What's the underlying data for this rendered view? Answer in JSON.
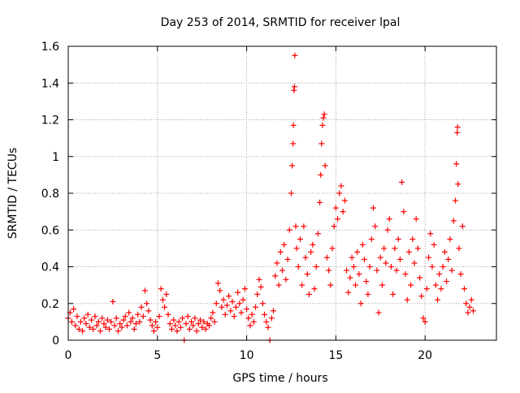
{
  "chart_data": {
    "type": "scatter",
    "title": "Day 253 of 2014, SRMTID for receiver lpal",
    "xlabel": "GPS time / hours",
    "ylabel": "SRMTID / TECUs",
    "xlim": [
      0,
      24
    ],
    "ylim": [
      0,
      1.6
    ],
    "x_ticks": [
      "0",
      "5",
      "10",
      "15",
      "20"
    ],
    "x_tick_values": [
      0,
      5,
      10,
      15,
      20
    ],
    "y_ticks": [
      "0",
      "0.2",
      "0.4",
      "0.6",
      "0.8",
      "1",
      "1.2",
      "1.4",
      "1.6"
    ],
    "y_tick_values": [
      0,
      0.2,
      0.4,
      0.6,
      0.8,
      1.0,
      1.2,
      1.4,
      1.6
    ],
    "grid": true,
    "marker": "plus",
    "color": "#ff0000",
    "series": [
      {
        "name": "SRMTID",
        "points": [
          [
            0.0,
            0.12
          ],
          [
            0.1,
            0.15
          ],
          [
            0.2,
            0.1
          ],
          [
            0.3,
            0.17
          ],
          [
            0.4,
            0.08
          ],
          [
            0.5,
            0.13
          ],
          [
            0.6,
            0.06
          ],
          [
            0.7,
            0.1
          ],
          [
            0.8,
            0.05
          ],
          [
            0.9,
            0.12
          ],
          [
            1.0,
            0.09
          ],
          [
            1.1,
            0.14
          ],
          [
            1.2,
            0.07
          ],
          [
            1.3,
            0.11
          ],
          [
            1.4,
            0.06
          ],
          [
            1.5,
            0.13
          ],
          [
            1.6,
            0.08
          ],
          [
            1.7,
            0.1
          ],
          [
            1.8,
            0.05
          ],
          [
            1.9,
            0.12
          ],
          [
            2.0,
            0.09
          ],
          [
            2.1,
            0.07
          ],
          [
            2.2,
            0.11
          ],
          [
            2.3,
            0.06
          ],
          [
            2.4,
            0.1
          ],
          [
            2.5,
            0.21
          ],
          [
            2.6,
            0.08
          ],
          [
            2.7,
            0.12
          ],
          [
            2.8,
            0.05
          ],
          [
            2.9,
            0.09
          ],
          [
            3.0,
            0.07
          ],
          [
            3.1,
            0.11
          ],
          [
            3.2,
            0.13
          ],
          [
            3.3,
            0.08
          ],
          [
            3.4,
            0.15
          ],
          [
            3.5,
            0.1
          ],
          [
            3.6,
            0.12
          ],
          [
            3.7,
            0.06
          ],
          [
            3.8,
            0.09
          ],
          [
            3.9,
            0.14
          ],
          [
            4.0,
            0.1
          ],
          [
            4.1,
            0.18
          ],
          [
            4.2,
            0.13
          ],
          [
            4.3,
            0.27
          ],
          [
            4.4,
            0.2
          ],
          [
            4.5,
            0.16
          ],
          [
            4.6,
            0.11
          ],
          [
            4.7,
            0.08
          ],
          [
            4.8,
            0.05
          ],
          [
            4.9,
            0.1
          ],
          [
            5.0,
            0.07
          ],
          [
            5.1,
            0.13
          ],
          [
            5.2,
            0.28
          ],
          [
            5.3,
            0.22
          ],
          [
            5.4,
            0.18
          ],
          [
            5.5,
            0.25
          ],
          [
            5.6,
            0.14
          ],
          [
            5.7,
            0.09
          ],
          [
            5.8,
            0.06
          ],
          [
            5.9,
            0.11
          ],
          [
            6.0,
            0.08
          ],
          [
            6.1,
            0.05
          ],
          [
            6.2,
            0.1
          ],
          [
            6.3,
            0.07
          ],
          [
            6.4,
            0.12
          ],
          [
            6.5,
            0.0
          ],
          [
            6.6,
            0.09
          ],
          [
            6.7,
            0.13
          ],
          [
            6.8,
            0.06
          ],
          [
            6.9,
            0.1
          ],
          [
            7.0,
            0.08
          ],
          [
            7.1,
            0.12
          ],
          [
            7.2,
            0.05
          ],
          [
            7.3,
            0.09
          ],
          [
            7.4,
            0.11
          ],
          [
            7.5,
            0.07
          ],
          [
            7.6,
            0.1
          ],
          [
            7.7,
            0.06
          ],
          [
            7.8,
            0.09
          ],
          [
            7.9,
            0.08
          ],
          [
            8.0,
            0.12
          ],
          [
            8.1,
            0.15
          ],
          [
            8.2,
            0.1
          ],
          [
            8.3,
            0.2
          ],
          [
            8.4,
            0.31
          ],
          [
            8.5,
            0.27
          ],
          [
            8.6,
            0.18
          ],
          [
            8.7,
            0.22
          ],
          [
            8.8,
            0.14
          ],
          [
            8.9,
            0.19
          ],
          [
            9.0,
            0.24
          ],
          [
            9.1,
            0.16
          ],
          [
            9.2,
            0.21
          ],
          [
            9.3,
            0.13
          ],
          [
            9.4,
            0.18
          ],
          [
            9.5,
            0.26
          ],
          [
            9.6,
            0.2
          ],
          [
            9.7,
            0.15
          ],
          [
            9.8,
            0.22
          ],
          [
            9.9,
            0.28
          ],
          [
            10.0,
            0.17
          ],
          [
            10.1,
            0.12
          ],
          [
            10.2,
            0.08
          ],
          [
            10.3,
            0.14
          ],
          [
            10.4,
            0.1
          ],
          [
            10.5,
            0.18
          ],
          [
            10.6,
            0.25
          ],
          [
            10.7,
            0.33
          ],
          [
            10.8,
            0.29
          ],
          [
            10.9,
            0.2
          ],
          [
            11.0,
            0.14
          ],
          [
            11.1,
            0.1
          ],
          [
            11.2,
            0.07
          ],
          [
            11.3,
            0.0
          ],
          [
            11.4,
            0.12
          ],
          [
            11.5,
            0.16
          ],
          [
            11.6,
            0.35
          ],
          [
            11.7,
            0.42
          ],
          [
            11.8,
            0.3
          ],
          [
            11.9,
            0.48
          ],
          [
            12.0,
            0.38
          ],
          [
            12.1,
            0.52
          ],
          [
            12.2,
            0.33
          ],
          [
            12.3,
            0.44
          ],
          [
            12.4,
            0.6
          ],
          [
            12.5,
            0.8
          ],
          [
            12.55,
            0.95
          ],
          [
            12.6,
            1.07
          ],
          [
            12.62,
            1.17
          ],
          [
            12.65,
            1.36
          ],
          [
            12.68,
            1.38
          ],
          [
            12.7,
            1.55
          ],
          [
            12.75,
            0.62
          ],
          [
            12.8,
            0.5
          ],
          [
            12.9,
            0.4
          ],
          [
            13.0,
            0.55
          ],
          [
            13.1,
            0.3
          ],
          [
            13.2,
            0.62
          ],
          [
            13.3,
            0.45
          ],
          [
            13.4,
            0.36
          ],
          [
            13.5,
            0.25
          ],
          [
            13.6,
            0.48
          ],
          [
            13.7,
            0.52
          ],
          [
            13.8,
            0.28
          ],
          [
            13.9,
            0.4
          ],
          [
            14.0,
            0.58
          ],
          [
            14.1,
            0.75
          ],
          [
            14.15,
            0.9
          ],
          [
            14.2,
            1.07
          ],
          [
            14.25,
            1.17
          ],
          [
            14.3,
            1.21
          ],
          [
            14.35,
            1.23
          ],
          [
            14.4,
            0.95
          ],
          [
            14.5,
            0.45
          ],
          [
            14.6,
            0.38
          ],
          [
            14.7,
            0.3
          ],
          [
            14.8,
            0.5
          ],
          [
            14.9,
            0.62
          ],
          [
            15.0,
            0.72
          ],
          [
            15.1,
            0.66
          ],
          [
            15.2,
            0.8
          ],
          [
            15.3,
            0.84
          ],
          [
            15.4,
            0.7
          ],
          [
            15.5,
            0.76
          ],
          [
            15.6,
            0.38
          ],
          [
            15.7,
            0.26
          ],
          [
            15.8,
            0.34
          ],
          [
            15.9,
            0.45
          ],
          [
            16.0,
            0.4
          ],
          [
            16.1,
            0.3
          ],
          [
            16.2,
            0.48
          ],
          [
            16.3,
            0.36
          ],
          [
            16.4,
            0.2
          ],
          [
            16.5,
            0.52
          ],
          [
            16.6,
            0.44
          ],
          [
            16.7,
            0.32
          ],
          [
            16.8,
            0.25
          ],
          [
            16.9,
            0.4
          ],
          [
            17.0,
            0.55
          ],
          [
            17.1,
            0.72
          ],
          [
            17.2,
            0.62
          ],
          [
            17.3,
            0.38
          ],
          [
            17.4,
            0.15
          ],
          [
            17.5,
            0.45
          ],
          [
            17.6,
            0.3
          ],
          [
            17.7,
            0.5
          ],
          [
            17.8,
            0.42
          ],
          [
            17.9,
            0.6
          ],
          [
            18.0,
            0.66
          ],
          [
            18.1,
            0.4
          ],
          [
            18.2,
            0.25
          ],
          [
            18.3,
            0.5
          ],
          [
            18.4,
            0.38
          ],
          [
            18.5,
            0.55
          ],
          [
            18.6,
            0.44
          ],
          [
            18.7,
            0.86
          ],
          [
            18.8,
            0.7
          ],
          [
            18.9,
            0.36
          ],
          [
            19.0,
            0.22
          ],
          [
            19.1,
            0.48
          ],
          [
            19.2,
            0.3
          ],
          [
            19.3,
            0.55
          ],
          [
            19.4,
            0.42
          ],
          [
            19.5,
            0.66
          ],
          [
            19.6,
            0.5
          ],
          [
            19.7,
            0.34
          ],
          [
            19.8,
            0.24
          ],
          [
            19.9,
            0.12
          ],
          [
            20.0,
            0.1
          ],
          [
            20.1,
            0.28
          ],
          [
            20.2,
            0.45
          ],
          [
            20.3,
            0.58
          ],
          [
            20.4,
            0.4
          ],
          [
            20.5,
            0.52
          ],
          [
            20.6,
            0.3
          ],
          [
            20.7,
            0.22
          ],
          [
            20.8,
            0.36
          ],
          [
            20.9,
            0.28
          ],
          [
            21.0,
            0.4
          ],
          [
            21.1,
            0.48
          ],
          [
            21.2,
            0.32
          ],
          [
            21.3,
            0.44
          ],
          [
            21.4,
            0.55
          ],
          [
            21.5,
            0.38
          ],
          [
            21.6,
            0.65
          ],
          [
            21.7,
            0.76
          ],
          [
            21.75,
            0.96
          ],
          [
            21.8,
            1.13
          ],
          [
            21.82,
            1.16
          ],
          [
            21.85,
            0.85
          ],
          [
            21.9,
            0.5
          ],
          [
            22.0,
            0.36
          ],
          [
            22.1,
            0.62
          ],
          [
            22.2,
            0.28
          ],
          [
            22.3,
            0.2
          ],
          [
            22.4,
            0.15
          ],
          [
            22.5,
            0.18
          ],
          [
            22.6,
            0.22
          ],
          [
            22.7,
            0.16
          ]
        ]
      }
    ]
  }
}
